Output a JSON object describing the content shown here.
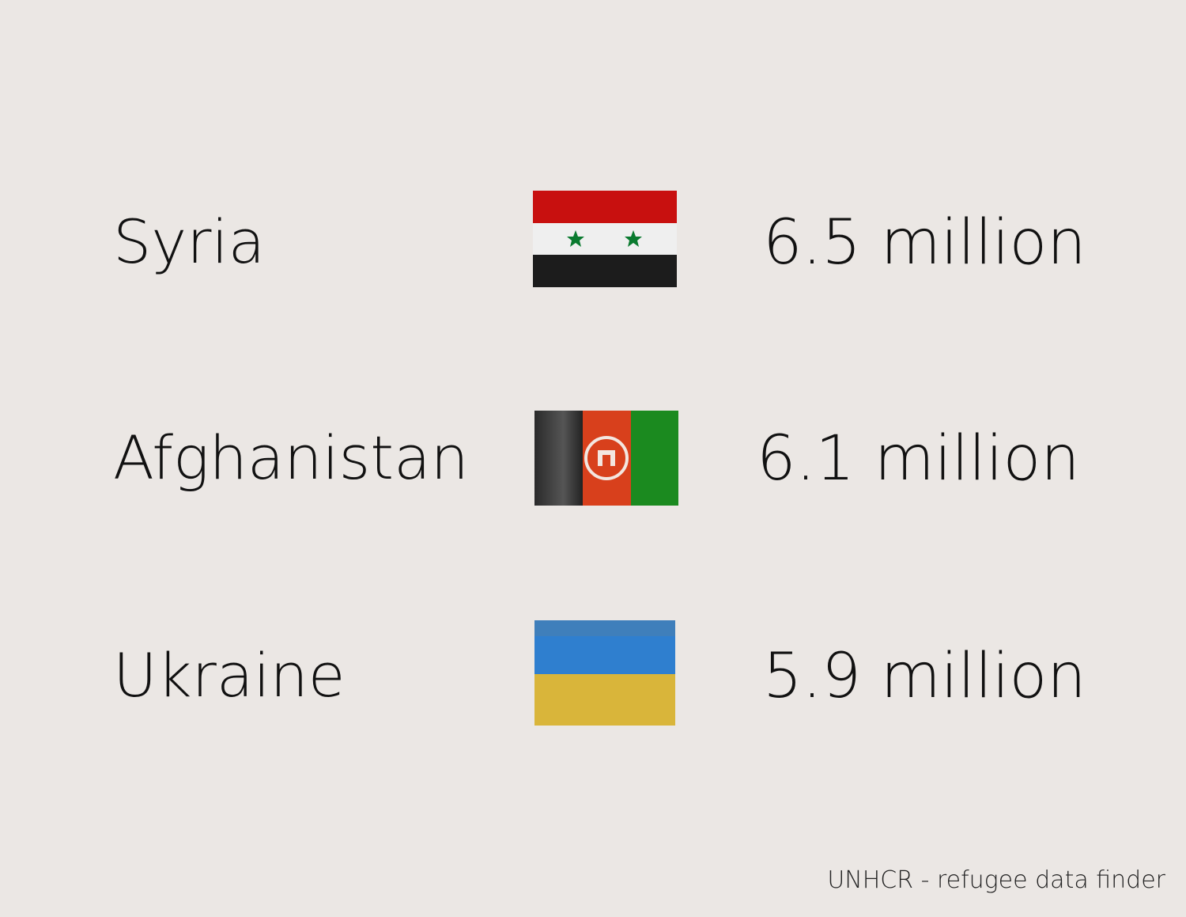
{
  "rows": [
    {
      "country": "Syria",
      "value": "6.5 million"
    },
    {
      "country": "Afghanistan",
      "value": "6.1 million"
    },
    {
      "country": "Ukraine",
      "value": "5.9 million"
    }
  ],
  "source": "UNHCR - refugee data finder"
}
